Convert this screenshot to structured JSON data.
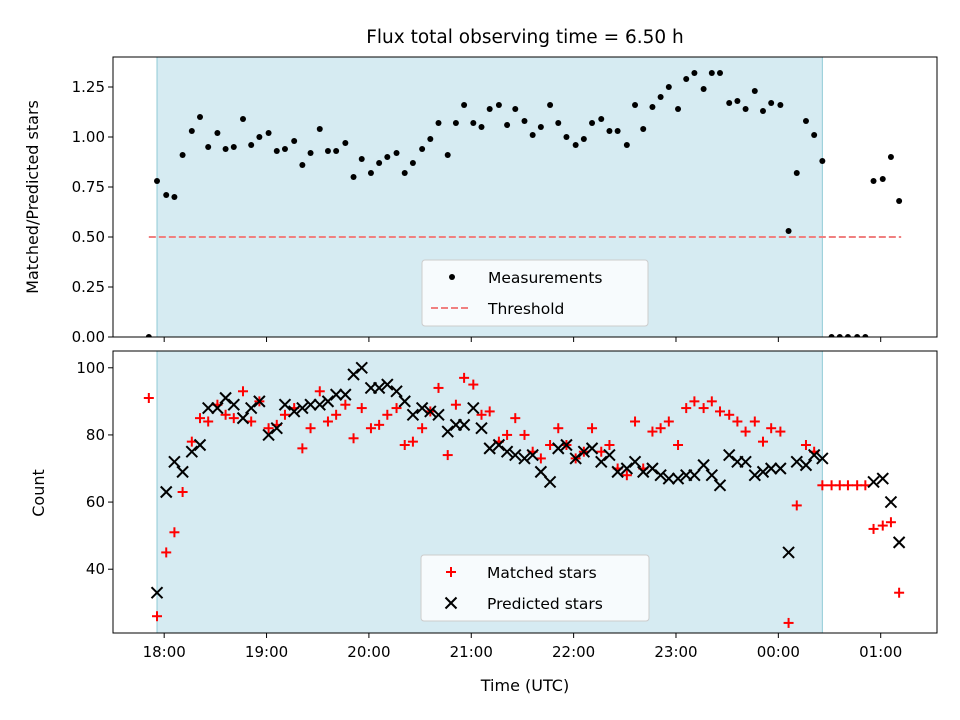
{
  "chart_data": [
    {
      "type": "scatter",
      "title": "Flux total observing time = 6.50 h",
      "xlabel": "",
      "ylabel": "Matched/Predicted stars",
      "ylim": [
        0,
        1.4
      ],
      "yticks": [
        "0.00",
        "0.25",
        "0.50",
        "0.75",
        "1.00",
        "1.25"
      ],
      "xlim_hours": [
        17.5,
        25.55
      ],
      "shaded_span_hours": [
        17.93,
        24.43
      ],
      "threshold": 0.5,
      "legend": {
        "position": "lower-center",
        "entries": [
          "Measurements",
          "Threshold"
        ]
      },
      "series": [
        {
          "name": "Measurements",
          "marker": "dot",
          "color": "#000000",
          "x": [
            17.85,
            17.93,
            18.02,
            18.1,
            18.18,
            18.27,
            18.35,
            18.43,
            18.52,
            18.6,
            18.68,
            18.77,
            18.85,
            18.93,
            19.02,
            19.1,
            19.18,
            19.27,
            19.35,
            19.43,
            19.52,
            19.6,
            19.68,
            19.77,
            19.85,
            19.93,
            20.02,
            20.1,
            20.18,
            20.27,
            20.35,
            20.43,
            20.52,
            20.6,
            20.68,
            20.77,
            20.85,
            20.93,
            21.02,
            21.1,
            21.18,
            21.27,
            21.35,
            21.43,
            21.52,
            21.6,
            21.68,
            21.77,
            21.85,
            21.93,
            22.02,
            22.1,
            22.18,
            22.27,
            22.35,
            22.43,
            22.52,
            22.6,
            22.68,
            22.77,
            22.85,
            22.93,
            23.02,
            23.1,
            23.18,
            23.27,
            23.35,
            23.43,
            23.52,
            23.6,
            23.68,
            23.77,
            23.85,
            23.93,
            24.02,
            24.1,
            24.18,
            24.27,
            24.35,
            24.43,
            24.52,
            24.6,
            24.68,
            24.77,
            24.85,
            24.93,
            25.02,
            25.1,
            25.18
          ],
          "y": [
            0.0,
            0.78,
            0.71,
            0.7,
            0.91,
            1.03,
            1.1,
            0.95,
            1.02,
            0.94,
            0.95,
            1.09,
            0.96,
            1.0,
            1.02,
            0.93,
            0.94,
            0.98,
            0.86,
            0.92,
            1.04,
            0.93,
            0.93,
            0.97,
            0.8,
            0.89,
            0.82,
            0.87,
            0.9,
            0.92,
            0.82,
            0.87,
            0.94,
            0.99,
            1.07,
            0.91,
            1.07,
            1.16,
            1.07,
            1.05,
            1.14,
            1.16,
            1.06,
            1.14,
            1.08,
            1.01,
            1.05,
            1.16,
            1.07,
            1.0,
            0.96,
            0.99,
            1.07,
            1.09,
            1.03,
            1.03,
            0.96,
            1.16,
            1.04,
            1.15,
            1.2,
            1.25,
            1.14,
            1.29,
            1.32,
            1.24,
            1.32,
            1.32,
            1.17,
            1.18,
            1.14,
            1.23,
            1.13,
            1.17,
            1.16,
            0.53,
            0.82,
            1.08,
            1.01,
            0.88,
            0.0,
            0.0,
            0.0,
            0.0,
            0.0,
            0.78,
            0.79,
            0.9,
            0.68
          ]
        },
        {
          "name": "Threshold",
          "style": "dashed",
          "color": "#f08080",
          "x": [
            17.85,
            25.2
          ],
          "y": [
            0.5,
            0.5
          ]
        }
      ]
    },
    {
      "type": "scatter",
      "title": "",
      "xlabel": "Time (UTC)",
      "ylabel": "Count",
      "ylim": [
        21,
        105
      ],
      "yticks": [
        "40",
        "60",
        "80",
        "100"
      ],
      "xticks": [
        "18:00",
        "19:00",
        "20:00",
        "21:00",
        "22:00",
        "23:00",
        "00:00",
        "01:00"
      ],
      "xlim_hours": [
        17.5,
        25.55
      ],
      "shaded_span_hours": [
        17.93,
        24.43
      ],
      "legend": {
        "position": "lower-center",
        "entries": [
          "Matched stars",
          "Predicted stars"
        ]
      },
      "series": [
        {
          "name": "Matched stars",
          "marker": "plus",
          "color": "#ff0000",
          "x": [
            17.85,
            17.93,
            18.02,
            18.1,
            18.18,
            18.27,
            18.35,
            18.43,
            18.52,
            18.6,
            18.68,
            18.77,
            18.85,
            18.93,
            19.02,
            19.1,
            19.18,
            19.27,
            19.35,
            19.43,
            19.52,
            19.6,
            19.68,
            19.77,
            19.85,
            19.93,
            20.02,
            20.1,
            20.18,
            20.27,
            20.35,
            20.43,
            20.52,
            20.6,
            20.68,
            20.77,
            20.85,
            20.93,
            21.02,
            21.1,
            21.18,
            21.27,
            21.35,
            21.43,
            21.52,
            21.6,
            21.68,
            21.77,
            21.85,
            21.93,
            22.02,
            22.1,
            22.18,
            22.27,
            22.35,
            22.43,
            22.52,
            22.6,
            22.68,
            22.77,
            22.85,
            22.93,
            23.02,
            23.1,
            23.18,
            23.27,
            23.35,
            23.43,
            23.52,
            23.6,
            23.68,
            23.77,
            23.85,
            23.93,
            24.02,
            24.1,
            24.18,
            24.27,
            24.35,
            24.43,
            24.52,
            24.6,
            24.68,
            24.77,
            24.85,
            24.93,
            25.02,
            25.1,
            25.18
          ],
          "y": [
            91,
            26,
            45,
            51,
            63,
            78,
            85,
            84,
            89,
            86,
            85,
            93,
            84,
            90,
            82,
            83,
            86,
            88,
            76,
            82,
            93,
            84,
            86,
            89,
            79,
            88,
            82,
            83,
            86,
            88,
            77,
            78,
            82,
            87,
            94,
            74,
            89,
            97,
            95,
            86,
            87,
            78,
            80,
            85,
            80,
            75,
            73,
            77,
            82,
            77,
            73,
            75,
            82,
            75,
            77,
            70,
            68,
            84,
            70,
            81,
            82,
            84,
            77,
            88,
            90,
            88,
            90,
            87,
            86,
            84,
            81,
            84,
            78,
            82,
            81,
            24,
            59,
            77,
            75,
            65,
            65,
            65,
            65,
            65,
            65,
            52,
            53,
            54,
            33
          ]
        },
        {
          "name": "Predicted stars",
          "marker": "x",
          "color": "#000000",
          "x": [
            17.93,
            18.02,
            18.1,
            18.18,
            18.27,
            18.35,
            18.43,
            18.52,
            18.6,
            18.68,
            18.77,
            18.85,
            18.93,
            19.02,
            19.1,
            19.18,
            19.27,
            19.35,
            19.43,
            19.52,
            19.6,
            19.68,
            19.77,
            19.85,
            19.93,
            20.02,
            20.1,
            20.18,
            20.27,
            20.35,
            20.43,
            20.52,
            20.6,
            20.68,
            20.77,
            20.85,
            20.93,
            21.02,
            21.1,
            21.18,
            21.27,
            21.35,
            21.43,
            21.52,
            21.6,
            21.68,
            21.77,
            21.85,
            21.93,
            22.02,
            22.1,
            22.18,
            22.27,
            22.35,
            22.43,
            22.52,
            22.6,
            22.68,
            22.77,
            22.85,
            22.93,
            23.02,
            23.1,
            23.18,
            23.27,
            23.35,
            23.43,
            23.52,
            23.6,
            23.68,
            23.77,
            23.85,
            23.93,
            24.02,
            24.1,
            24.18,
            24.27,
            24.35,
            24.43,
            24.93,
            25.02,
            25.1,
            25.18
          ],
          "y": [
            33,
            63,
            72,
            69,
            75,
            77,
            88,
            88,
            91,
            89,
            85,
            88,
            90,
            80,
            82,
            89,
            87,
            88,
            89,
            89,
            90,
            92,
            92,
            98,
            100,
            94,
            94,
            95,
            93,
            90,
            86,
            88,
            87,
            86,
            81,
            83,
            83,
            88,
            82,
            76,
            77,
            75,
            74,
            73,
            74,
            69,
            66,
            76,
            77,
            73,
            75,
            76,
            72,
            74,
            69,
            70,
            72,
            69,
            70,
            68,
            67,
            67,
            68,
            68,
            71,
            68,
            65,
            74,
            72,
            72,
            68,
            69,
            70,
            70,
            45,
            72,
            71,
            74,
            73,
            66,
            67,
            60,
            48
          ]
        }
      ]
    }
  ]
}
